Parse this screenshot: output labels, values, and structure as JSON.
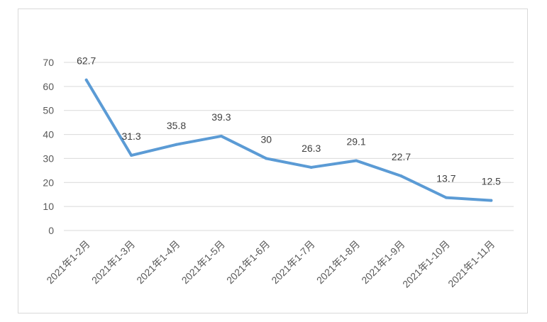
{
  "chart_data": {
    "type": "line",
    "title": "",
    "xlabel": "",
    "ylabel": "",
    "categories": [
      "2021年1-2月",
      "2021年1-3月",
      "2021年1-4月",
      "2021年1-5月",
      "2021年1-6月",
      "2021年1-7月",
      "2021年1-8月",
      "2021年1-9月",
      "2021年1-10月",
      "2021年1-11月"
    ],
    "series": [
      {
        "values": [
          62.7,
          31.3,
          35.8,
          39.3,
          30,
          26.3,
          29.1,
          22.7,
          13.7,
          12.5
        ],
        "labels": [
          "62.7",
          "31.3",
          "35.8",
          "39.3",
          "30",
          "26.3",
          "29.1",
          "22.7",
          "13.7",
          "12.5"
        ]
      }
    ],
    "ylim": [
      0,
      70
    ],
    "yticks": [
      "0",
      "10",
      "20",
      "30",
      "40",
      "50",
      "60",
      "70"
    ],
    "grid": true,
    "legend": "none",
    "colors": {
      "series": "#5b9bd5",
      "grid": "#d9d9d9",
      "tick_text": "#595959",
      "label_text": "#404040"
    }
  }
}
